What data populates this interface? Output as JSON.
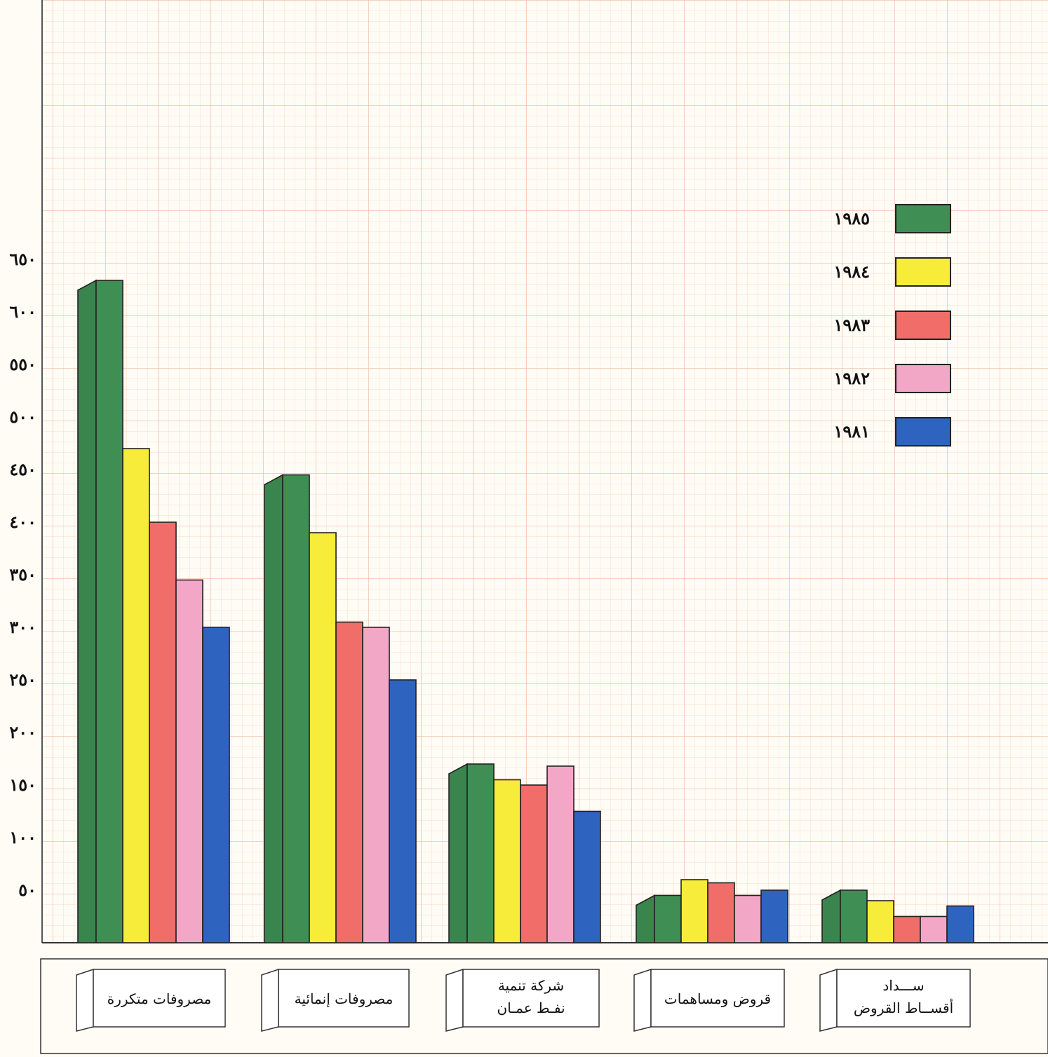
{
  "chart_data": {
    "type": "bar",
    "title": "",
    "xlabel": "",
    "ylabel": "",
    "ylim": [
      0,
      650
    ],
    "yticks": [
      "٥٠",
      "١٠٠",
      "١٥٠",
      "٢٠٠",
      "٢٥٠",
      "٣٠٠",
      "٣٥٠",
      "٤٠٠",
      "٤٥٠",
      "٥٠٠",
      "٥٥٠",
      "٦٠٠",
      "٦٥٠"
    ],
    "ytick_values": [
      50,
      100,
      150,
      200,
      250,
      300,
      350,
      400,
      450,
      500,
      550,
      600,
      650
    ],
    "grid": true,
    "legend_position": "top-right",
    "categories": [
      [
        "مصروفات متكررة"
      ],
      [
        "مصروفات إنمائية"
      ],
      [
        "شركة تنمية",
        "نفـط عمـان"
      ],
      [
        "قروض ومساهمات"
      ],
      [
        "ســـداد",
        "أقســاط القروض"
      ]
    ],
    "series": [
      {
        "name": "١٩٨٥",
        "color": "#3f8f55",
        "values": [
          630,
          445,
          170,
          45,
          50
        ]
      },
      {
        "name": "١٩٨٤",
        "color": "#f7ec3a",
        "values": [
          470,
          390,
          155,
          60,
          40
        ]
      },
      {
        "name": "١٩٨٣",
        "color": "#f06d6a",
        "values": [
          400,
          305,
          150,
          57,
          25
        ]
      },
      {
        "name": "١٩٨٢",
        "color": "#f3a7c6",
        "values": [
          345,
          300,
          168,
          45,
          25
        ]
      },
      {
        "name": "١٩٨١",
        "color": "#2f63c0",
        "values": [
          300,
          250,
          125,
          50,
          35
        ]
      }
    ]
  }
}
